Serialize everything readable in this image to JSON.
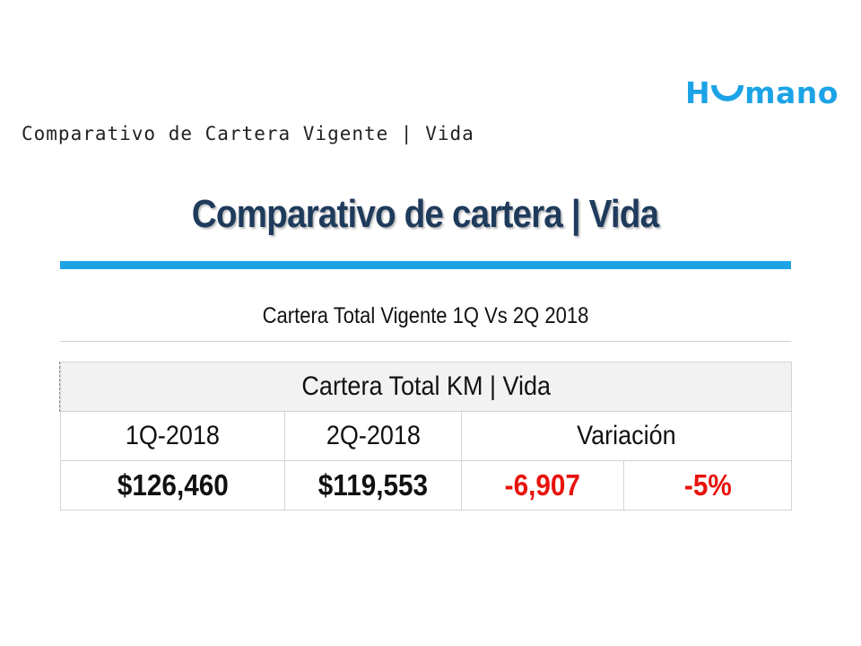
{
  "logo": {
    "text_left": "H",
    "text_right": "mano"
  },
  "doc_title": "Comparativo de Cartera Vigente | Vida",
  "main_heading": "Comparativo de cartera  | Vida",
  "subtitle": "Cartera Total Vigente 1Q Vs 2Q 2018",
  "table": {
    "header": "Cartera Total KM | Vida",
    "columns": [
      "1Q-2018",
      "2Q-2018",
      "Variación"
    ],
    "values": {
      "q1": "$126,460",
      "q2": "$119,553",
      "variation_abs": "-6,907",
      "variation_pct": "-5%"
    }
  },
  "colors": {
    "accent": "#1ba3e6",
    "heading": "#1f3b5c",
    "negative": "#e8120c"
  }
}
